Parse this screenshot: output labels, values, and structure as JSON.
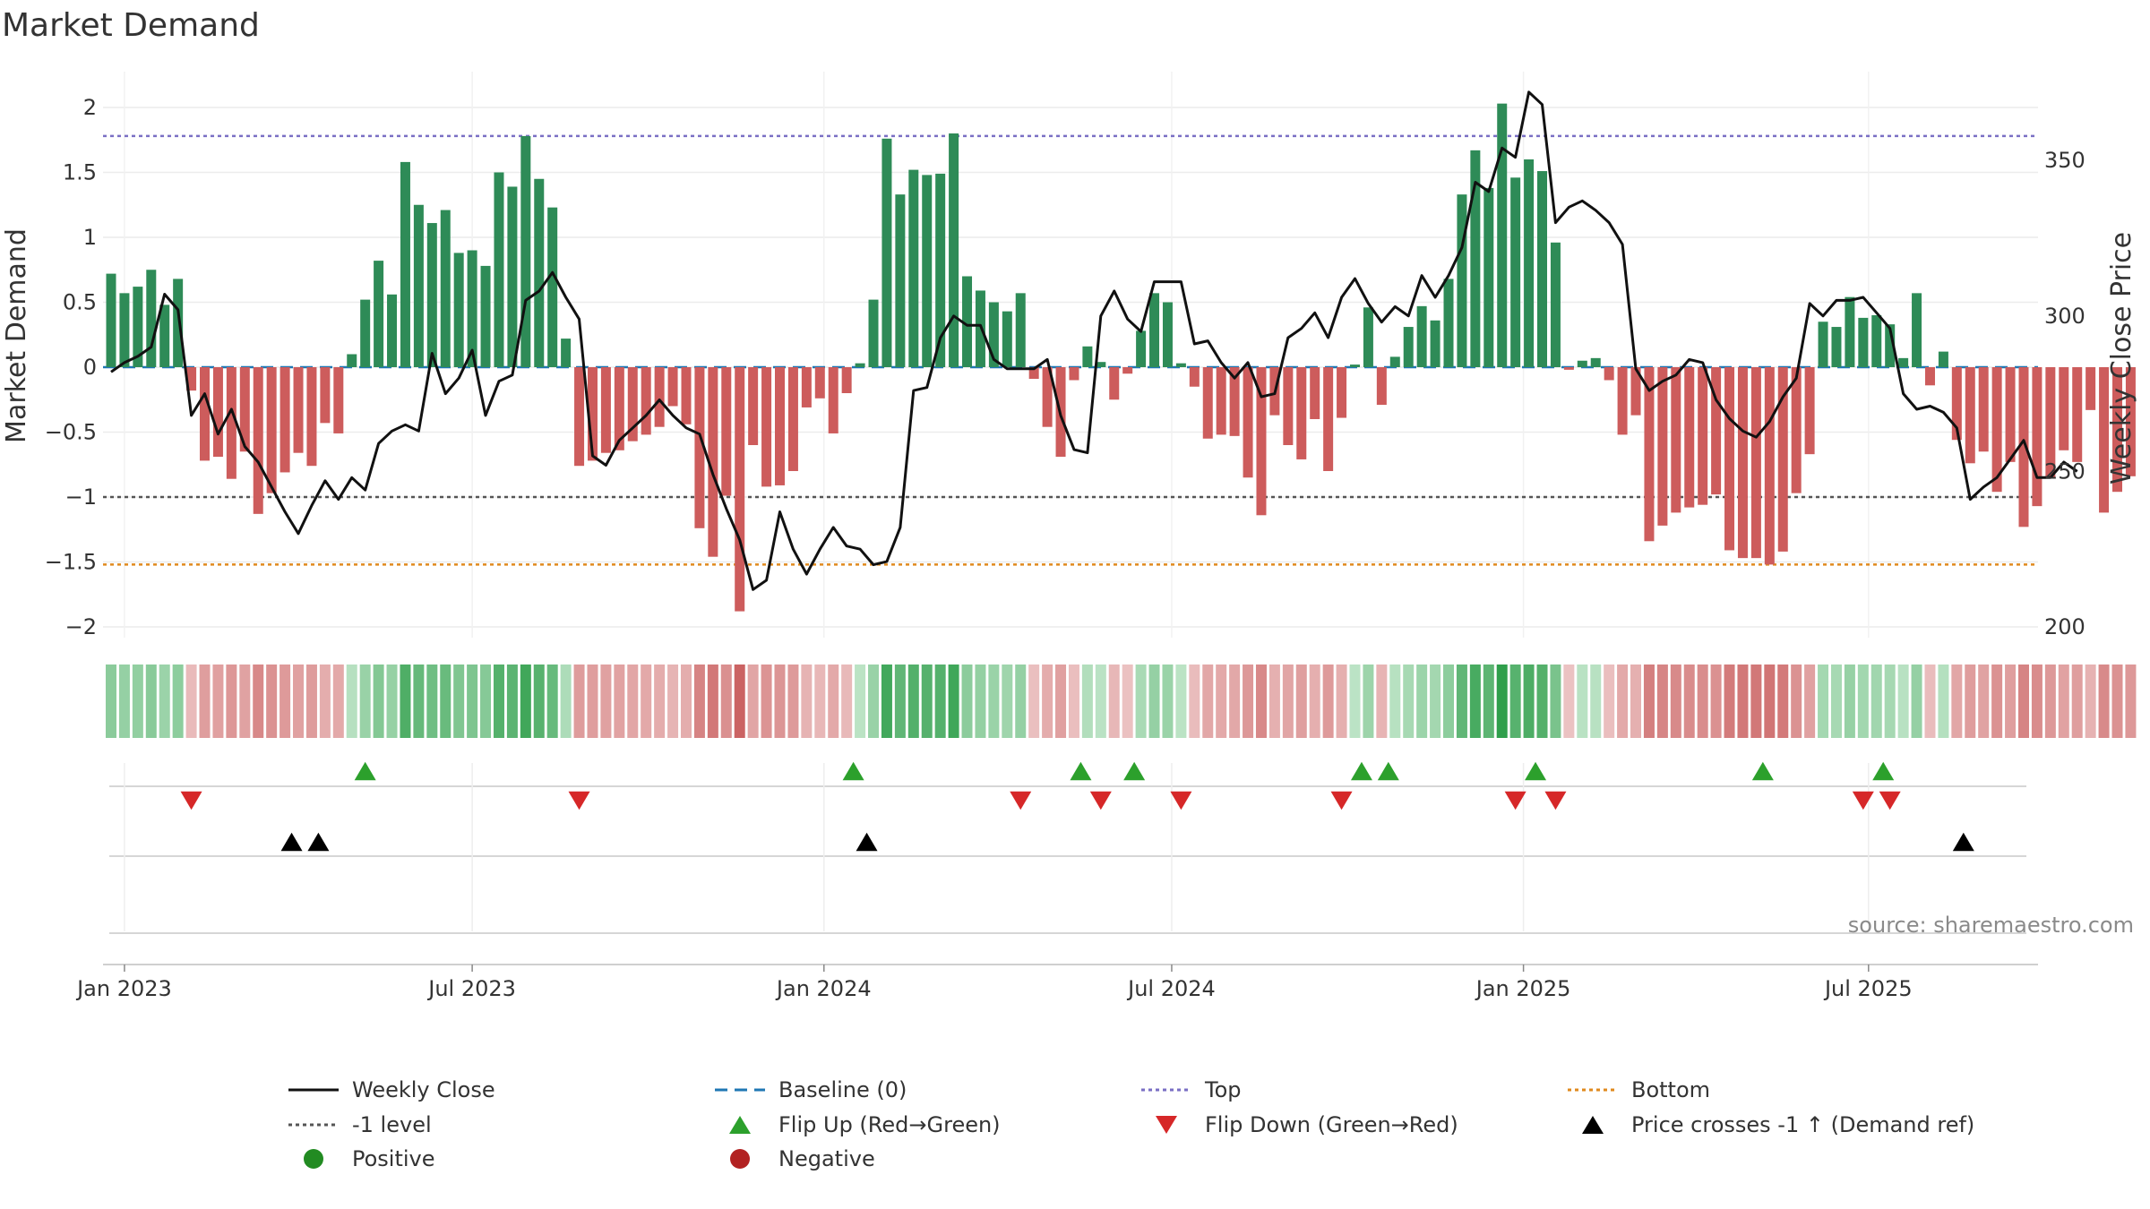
{
  "chart_data": {
    "type": "bar+line",
    "title": "Market Demand",
    "ylabel_left": "Market Demand",
    "ylabel_right": "Weekly Close Price",
    "ylim_left": [
      -2.2,
      2.25
    ],
    "ylim_right": [
      195,
      370
    ],
    "yticks_left": [
      {
        "v": 2,
        "label": "2"
      },
      {
        "v": 1.5,
        "label": "1.5"
      },
      {
        "v": 1,
        "label": "1"
      },
      {
        "v": 0.5,
        "label": "0.5"
      },
      {
        "v": 0,
        "label": "0"
      },
      {
        "v": -0.5,
        "label": "−0.5"
      },
      {
        "v": -1,
        "label": "−1"
      },
      {
        "v": -1.5,
        "label": "−1.5"
      },
      {
        "v": -2,
        "label": "−2"
      }
    ],
    "yticks_right": [
      {
        "v": 350,
        "label": "350"
      },
      {
        "v": 300,
        "label": "300"
      },
      {
        "v": 250,
        "label": "250"
      },
      {
        "v": 200,
        "label": "200"
      }
    ],
    "xticks": [
      {
        "week": 1,
        "label": "Jan 2023"
      },
      {
        "week": 27,
        "label": "Jul 2023"
      },
      {
        "week": 53.3,
        "label": "Jan 2024"
      },
      {
        "week": 79.3,
        "label": "Jul 2024"
      },
      {
        "week": 105.6,
        "label": "Jan 2025"
      },
      {
        "week": 131.4,
        "label": "Jul 2025"
      }
    ],
    "reference_levels": {
      "top": 1.78,
      "bottom": -1.52,
      "minus_one": -1,
      "baseline": 0
    },
    "demand": [
      0.72,
      0.57,
      0.62,
      0.75,
      0.48,
      0.68,
      -0.18,
      -0.72,
      -0.69,
      -0.86,
      -0.65,
      -1.13,
      -0.97,
      -0.81,
      -0.66,
      -0.76,
      -0.43,
      -0.51,
      0.1,
      0.52,
      0.82,
      0.56,
      1.58,
      1.25,
      1.11,
      1.21,
      0.88,
      0.9,
      0.78,
      1.5,
      1.39,
      1.78,
      1.45,
      1.23,
      0.22,
      -0.76,
      -0.72,
      -0.66,
      -0.64,
      -0.57,
      -0.52,
      -0.46,
      -0.3,
      -0.44,
      -1.24,
      -1.46,
      -0.99,
      -1.88,
      -0.6,
      -0.92,
      -0.91,
      -0.8,
      -0.31,
      -0.24,
      -0.51,
      -0.2,
      0.03,
      0.52,
      1.76,
      1.33,
      1.52,
      1.48,
      1.49,
      1.8,
      0.7,
      0.59,
      0.5,
      0.43,
      0.57,
      -0.09,
      -0.46,
      -0.69,
      -0.1,
      0.16,
      0.04,
      -0.25,
      -0.05,
      0.28,
      0.57,
      0.5,
      0.03,
      -0.15,
      -0.55,
      -0.52,
      -0.53,
      -0.85,
      -1.14,
      -0.37,
      -0.6,
      -0.71,
      -0.4,
      -0.8,
      -0.39,
      0.02,
      0.46,
      -0.29,
      0.08,
      0.31,
      0.47,
      0.36,
      0.68,
      1.33,
      1.67,
      1.38,
      2.03,
      1.46,
      1.6,
      1.51,
      0.96,
      -0.02,
      0.05,
      0.07,
      -0.1,
      -0.52,
      -0.37,
      -1.34,
      -1.22,
      -1.12,
      -1.08,
      -1.06,
      -0.98,
      -1.41,
      -1.47,
      -1.47,
      -1.52,
      -1.42,
      -0.97,
      -0.67,
      0.35,
      0.31,
      0.54,
      0.38,
      0.4,
      0.33,
      0.07,
      0.57,
      -0.14,
      0.12,
      -0.56,
      -0.74,
      -0.65,
      -0.96,
      -0.73,
      -1.23,
      -1.07,
      -0.85,
      -0.64,
      -0.73,
      -0.33,
      -1.12,
      -0.96,
      -0.84
    ],
    "weekly_close": [
      282,
      285,
      287,
      290,
      307,
      302,
      268,
      275,
      262,
      270,
      258,
      253,
      245,
      237,
      230,
      239,
      247,
      241,
      248,
      244,
      259,
      263,
      265,
      263,
      288,
      275,
      280,
      289,
      268,
      279,
      281,
      305,
      308,
      314,
      306,
      299,
      255,
      252,
      260,
      264,
      268,
      273,
      268,
      264,
      262,
      249,
      238,
      228,
      212,
      215,
      237,
      225,
      217,
      225,
      232,
      226,
      225,
      220,
      221,
      232,
      276,
      277,
      293,
      300,
      297,
      297,
      286,
      283,
      283,
      283,
      286,
      268,
      257,
      256,
      300,
      308,
      299,
      295,
      311,
      311,
      311,
      291,
      292,
      285,
      280,
      285,
      274,
      275,
      293,
      296,
      301,
      293,
      306,
      312,
      304,
      298,
      303,
      300,
      313,
      306,
      313,
      322,
      343,
      340,
      354,
      351,
      372,
      368,
      330,
      335,
      337,
      334,
      330,
      323,
      283,
      276,
      279,
      281,
      286,
      285,
      273,
      267,
      263,
      261,
      266,
      274,
      280,
      304,
      300,
      305,
      305,
      306,
      301,
      296,
      275,
      270,
      271,
      269,
      264,
      241,
      245,
      248,
      254,
      260,
      248,
      248,
      253,
      250
    ]
  },
  "indicator_strip": {
    "description": "per-week colored blocks (green = positive demand, red = negative)",
    "positive_color": "#2e9e4a",
    "negative_color": "#c85b5b"
  },
  "flip_up_weeks": [
    19,
    55.5,
    72.5,
    76.5,
    93.5,
    95.5,
    106.5,
    123.5,
    132.5
  ],
  "flip_down_weeks": [
    6,
    35,
    68,
    74,
    80,
    92,
    105,
    108,
    131,
    133
  ],
  "price_cross_weeks": [
    13.5,
    15.5,
    56.5,
    138.5
  ],
  "colors": {
    "positive": "#2e8b57",
    "negative": "#cd5c5c",
    "price_line": "#111111",
    "top_line": "#7a6fc4",
    "bottom_line": "#e08a1e",
    "minus_one_line": "#555555",
    "baseline": "#1f77b4",
    "flip_up": "#2ca02c",
    "flip_down": "#d62728",
    "cross": "#000000",
    "positive_dot": "#228b22",
    "negative_dot": "#b22222"
  },
  "legend": [
    {
      "key": "close",
      "label": "Weekly Close"
    },
    {
      "key": "baseline",
      "label": "Baseline (0)"
    },
    {
      "key": "top",
      "label": "Top"
    },
    {
      "key": "bottom",
      "label": "Bottom"
    },
    {
      "key": "minus1",
      "label": "-1 level"
    },
    {
      "key": "flipup",
      "label": "Flip Up (Red→Green)"
    },
    {
      "key": "flipdown",
      "label": "Flip Down (Green→Red)"
    },
    {
      "key": "cross",
      "label": "Price crosses -1 ↑ (Demand ref)"
    },
    {
      "key": "pos",
      "label": "Positive"
    },
    {
      "key": "neg",
      "label": "Negative"
    }
  ],
  "source": "source: sharemaestro.com"
}
